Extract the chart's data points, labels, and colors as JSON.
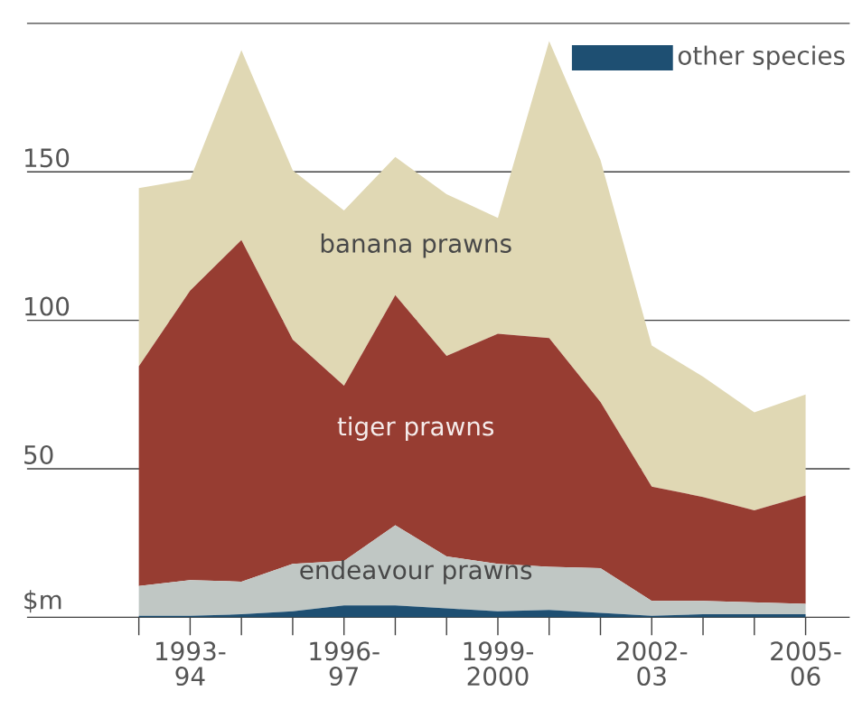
{
  "chart_data": {
    "type": "area",
    "stacked": true,
    "categories": [
      null,
      "1993-94",
      null,
      null,
      "1996-97",
      null,
      null,
      "1999-2000",
      null,
      null,
      "2002-03",
      null,
      null,
      "2005-06"
    ],
    "series": [
      {
        "name": "other species",
        "color": "#1e4f72",
        "values": [
          0.5,
          0.5,
          1,
          2,
          4,
          4,
          3,
          2,
          2.5,
          1.5,
          0.5,
          1,
          1,
          1
        ]
      },
      {
        "name": "endeavour prawns",
        "color": "#c0c7c4",
        "values": [
          10,
          12,
          11,
          16,
          15,
          27,
          17.5,
          16,
          14.5,
          15,
          5,
          4.5,
          4,
          3.5
        ]
      },
      {
        "name": "tiger prawns",
        "color": "#973d32",
        "values": [
          74,
          97.5,
          115,
          75.5,
          59,
          77.5,
          67.5,
          77.5,
          77,
          56,
          38.5,
          35,
          31,
          36.5
        ]
      },
      {
        "name": "banana prawns",
        "color": "#e0d8b4",
        "values": [
          60,
          37.5,
          64,
          57,
          59,
          46.5,
          54.5,
          39,
          100,
          81.5,
          47.5,
          40.5,
          33,
          34
        ]
      }
    ],
    "ylim": [
      0,
      200
    ],
    "yticks": [
      {
        "value": 0,
        "label": "$m"
      },
      50,
      100,
      150,
      {
        "value": 200,
        "label": null
      }
    ],
    "grid": "y",
    "legend": "top right"
  }
}
